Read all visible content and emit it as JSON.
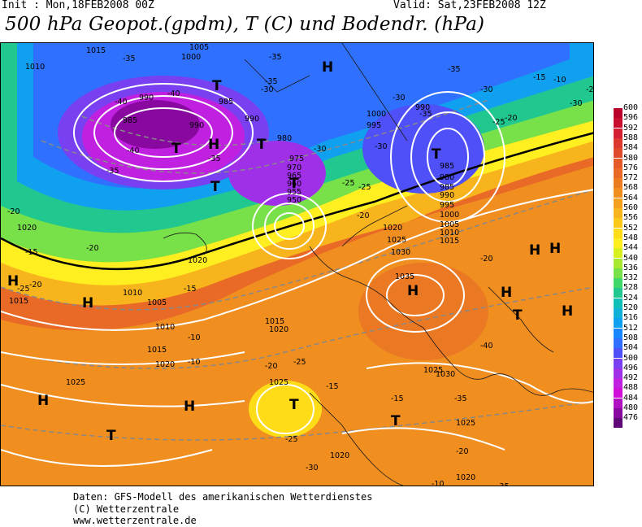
{
  "header": {
    "init": "Init : Mon,18FEB2008 00Z",
    "valid": "Valid: Sat,23FEB2008 12Z",
    "title": "500 hPa Geopot.(gpdm), T (C) und Bodendr. (hPa)"
  },
  "legend": {
    "values": [
      "600",
      "596",
      "592",
      "588",
      "584",
      "580",
      "576",
      "572",
      "568",
      "564",
      "560",
      "556",
      "552",
      "548",
      "544",
      "540",
      "536",
      "532",
      "528",
      "524",
      "520",
      "516",
      "512",
      "508",
      "504",
      "500",
      "496",
      "492",
      "488",
      "484",
      "480",
      "476"
    ],
    "colors": [
      "#b8002a",
      "#c8102e",
      "#d42033",
      "#dc3a30",
      "#e04a2c",
      "#e45a28",
      "#e86a26",
      "#ec7c22",
      "#f08e20",
      "#f4a01e",
      "#f8b41c",
      "#fcc81a",
      "#ffdc18",
      "#ffee20",
      "#d8f020",
      "#a8e830",
      "#78e048",
      "#40d868",
      "#20c890",
      "#10c0b8",
      "#10b0d8",
      "#10a0f0",
      "#1888ff",
      "#3070ff",
      "#5050f8",
      "#7840f0",
      "#a030e8",
      "#c020e0",
      "#d010d8",
      "#b010c0",
      "#8808a0",
      "#600878"
    ]
  },
  "map": {
    "pressure_labels": [
      "1015",
      "1010",
      "1005",
      "1000",
      "990",
      "985",
      "990",
      "985",
      "990",
      "980",
      "975",
      "970",
      "965",
      "960",
      "955",
      "950",
      "1000",
      "995",
      "990",
      "985",
      "980",
      "985",
      "990",
      "995",
      "1000",
      "1005",
      "1010",
      "1015",
      "1020",
      "1025",
      "1030",
      "1035",
      "1020",
      "1015",
      "1010",
      "1005",
      "1015",
      "1020",
      "1025",
      "1020",
      "1025",
      "1020",
      "1030",
      "1025",
      "1020",
      "1010",
      "1020",
      "1015",
      "1025"
    ],
    "temp_labels": [
      "-35",
      "-35",
      "-40",
      "-40",
      "-35",
      "-40",
      "-35",
      "-30",
      "-35",
      "-30",
      "-25",
      "-20",
      "-15",
      "-25",
      "-30",
      "-30",
      "-35",
      "-35",
      "-30",
      "-25",
      "-20",
      "-15",
      "-10",
      "-20",
      "-15",
      "-20",
      "-25",
      "-20",
      "-15",
      "-10",
      "-10",
      "-20",
      "-25",
      "-25",
      "-30",
      "-35",
      "-40",
      "-35",
      "-30",
      "-25",
      "-20",
      "-20",
      "-15",
      "-10"
    ],
    "highs_lows": [
      "H",
      "T",
      "T",
      "H",
      "T",
      "T",
      "T",
      "T",
      "H",
      "H",
      "H",
      "H",
      "H",
      "T",
      "H",
      "H",
      "H",
      "T",
      "H",
      "T",
      "T"
    ]
  },
  "footer": {
    "line1": "Daten: GFS-Modell des amerikanischen Wetterdienstes",
    "line2": "(C) Wetterzentrale",
    "line3": "www.wetterzentrale.de"
  }
}
